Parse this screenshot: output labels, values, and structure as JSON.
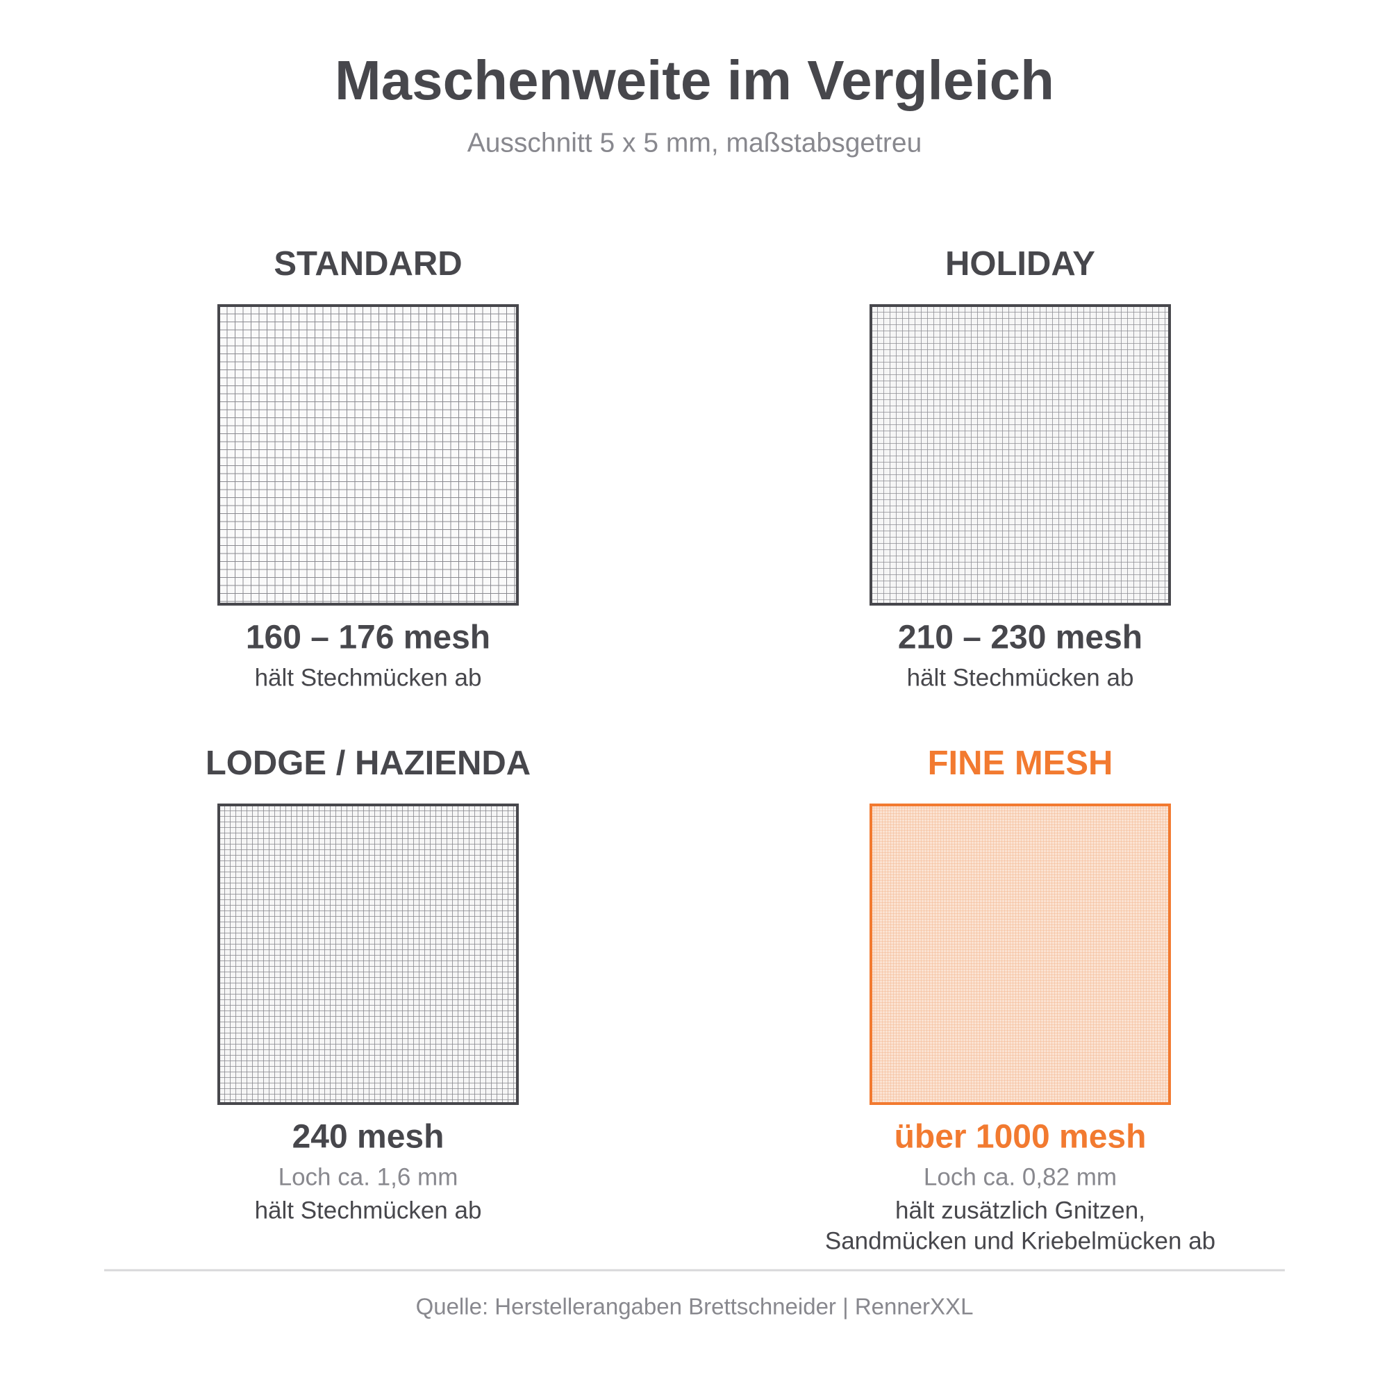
{
  "header": {
    "title": "Maschenweite im Vergleich",
    "subtitle": "Ausschnitt 5 x 5 mm, maßstabsgetreu"
  },
  "panels": [
    {
      "title": "STANDARD",
      "mesh": "160 – 176 mesh",
      "note": "hält Stechmücken ab"
    },
    {
      "title": "HOLIDAY",
      "mesh": "210 – 230 mesh",
      "note": "hält Stechmücken ab"
    },
    {
      "title": "LODGE / HAZIENDA",
      "mesh": "240 mesh",
      "hole": "Loch ca. 1,6 mm",
      "note": "hält Stechmücken ab"
    },
    {
      "title": "FINE MESH",
      "mesh": "über 1000 mesh",
      "hole": "Loch ca. 0,82 mm",
      "note_lines": [
        "hält zusätzlich Gnitzen,",
        "Sandmücken und Kriebelmücken ab"
      ]
    }
  ],
  "footer": {
    "source": "Quelle: Herstellerangaben Brettschneider | RennerXXL"
  }
}
